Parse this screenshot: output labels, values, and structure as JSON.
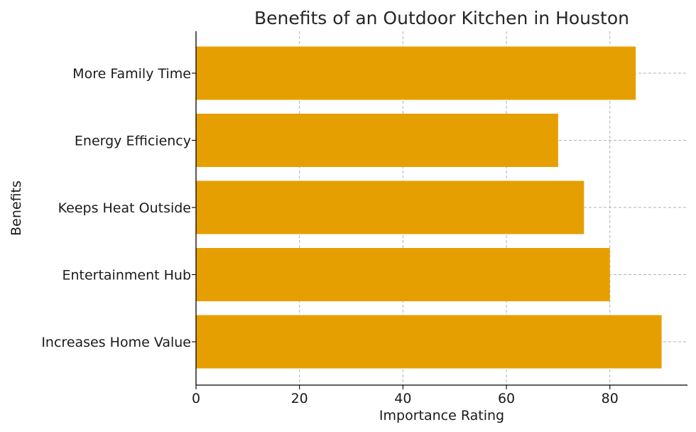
{
  "chart_data": {
    "type": "bar",
    "orientation": "horizontal",
    "title": "Benefits of an Outdoor Kitchen in Houston",
    "xlabel": "Importance Rating",
    "ylabel": "Benefits",
    "categories": [
      "Increases Home Value",
      "Entertainment Hub",
      "Keeps Heat Outside",
      "Energy Efficiency",
      "More Family Time"
    ],
    "values": [
      90,
      80,
      75,
      70,
      85
    ],
    "xlim": [
      0,
      95
    ],
    "xticks": [
      0,
      20,
      40,
      60,
      80
    ],
    "grid": true,
    "bar_color": "#E69F00"
  }
}
